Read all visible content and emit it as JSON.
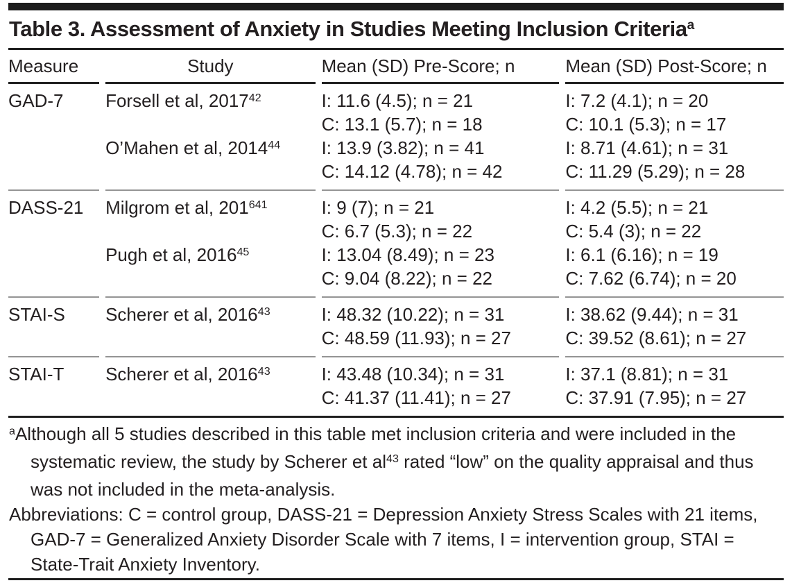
{
  "title": {
    "text": "Table 3. Assessment of Anxiety in Studies Meeting Inclusion Criteria",
    "superscript": "a"
  },
  "table": {
    "columns": [
      "Measure",
      "Study",
      "Mean (SD) Pre-Score; n",
      "Mean (SD) Post-Score; n"
    ],
    "groups": [
      {
        "measure": "GAD-7",
        "studies": [
          {
            "name": "Forsell et al, 2017",
            "ref": "42",
            "pre": [
              "I: 11.6 (4.5); n = 21",
              "C: 13.1 (5.7); n = 18"
            ],
            "post": [
              "I: 7.2 (4.1); n = 20",
              "C: 10.1 (5.3); n = 17"
            ]
          },
          {
            "name": "O’Mahen et al, 2014",
            "ref": "44",
            "pre": [
              "I: 13.9 (3.82); n = 41",
              "C: 14.12 (4.78); n = 42"
            ],
            "post": [
              "I: 8.71 (4.61); n = 31",
              "C: 11.29 (5.29); n = 28"
            ]
          }
        ]
      },
      {
        "measure": "DASS-21",
        "studies": [
          {
            "name": "Milgrom et al, 201",
            "ref": "641",
            "pre": [
              "I: 9 (7); n = 21",
              "C: 6.7 (5.3); n = 22"
            ],
            "post": [
              "I: 4.2 (5.5); n = 21",
              "C: 5.4 (3); n = 22"
            ]
          },
          {
            "name": "Pugh et al, 2016",
            "ref": "45",
            "pre": [
              "I: 13.04 (8.49); n = 23",
              "C: 9.04 (8.22); n = 22"
            ],
            "post": [
              "I: 6.1 (6.16); n = 19",
              "C: 7.62 (6.74); n = 20"
            ]
          }
        ]
      },
      {
        "measure": "STAI-S",
        "studies": [
          {
            "name": "Scherer et al, 2016",
            "ref": "43",
            "pre": [
              "I: 48.32 (10.22); n = 31",
              "C: 48.59 (11.93); n = 27"
            ],
            "post": [
              "I: 38.62 (9.44); n = 31",
              "C: 39.52 (8.61); n = 27"
            ]
          }
        ]
      },
      {
        "measure": "STAI-T",
        "studies": [
          {
            "name": "Scherer et al, 2016",
            "ref": "43",
            "pre": [
              "I: 43.48 (10.34); n = 31",
              "C: 41.37 (11.41); n = 27"
            ],
            "post": [
              "I: 37.1 (8.81); n = 31",
              "C: 37.91 (7.95); n = 27"
            ]
          }
        ]
      }
    ]
  },
  "footnotes": {
    "note_a_parts": [
      {
        "sup": "a"
      },
      {
        "text": "Although all 5 studies described in this table met inclusion criteria and were included in the systematic review, the study by Scherer et al"
      },
      {
        "sup": "43"
      },
      {
        "text": " rated “low” on the quality appraisal and thus was not included in the meta-analysis."
      }
    ],
    "abbreviations": "Abbreviations: C = control group, DASS-21 = Depression Anxiety Stress Scales with 21 items, GAD-7 = Generalized Anxiety Disorder Scale with 7 items, I = intervention group, STAI = State-Trait Anxiety Inventory."
  },
  "colors": {
    "text": "#231f20",
    "rule_dark": "#1f1f1f",
    "rule_gray": "#949494",
    "background": "#ffffff"
  }
}
